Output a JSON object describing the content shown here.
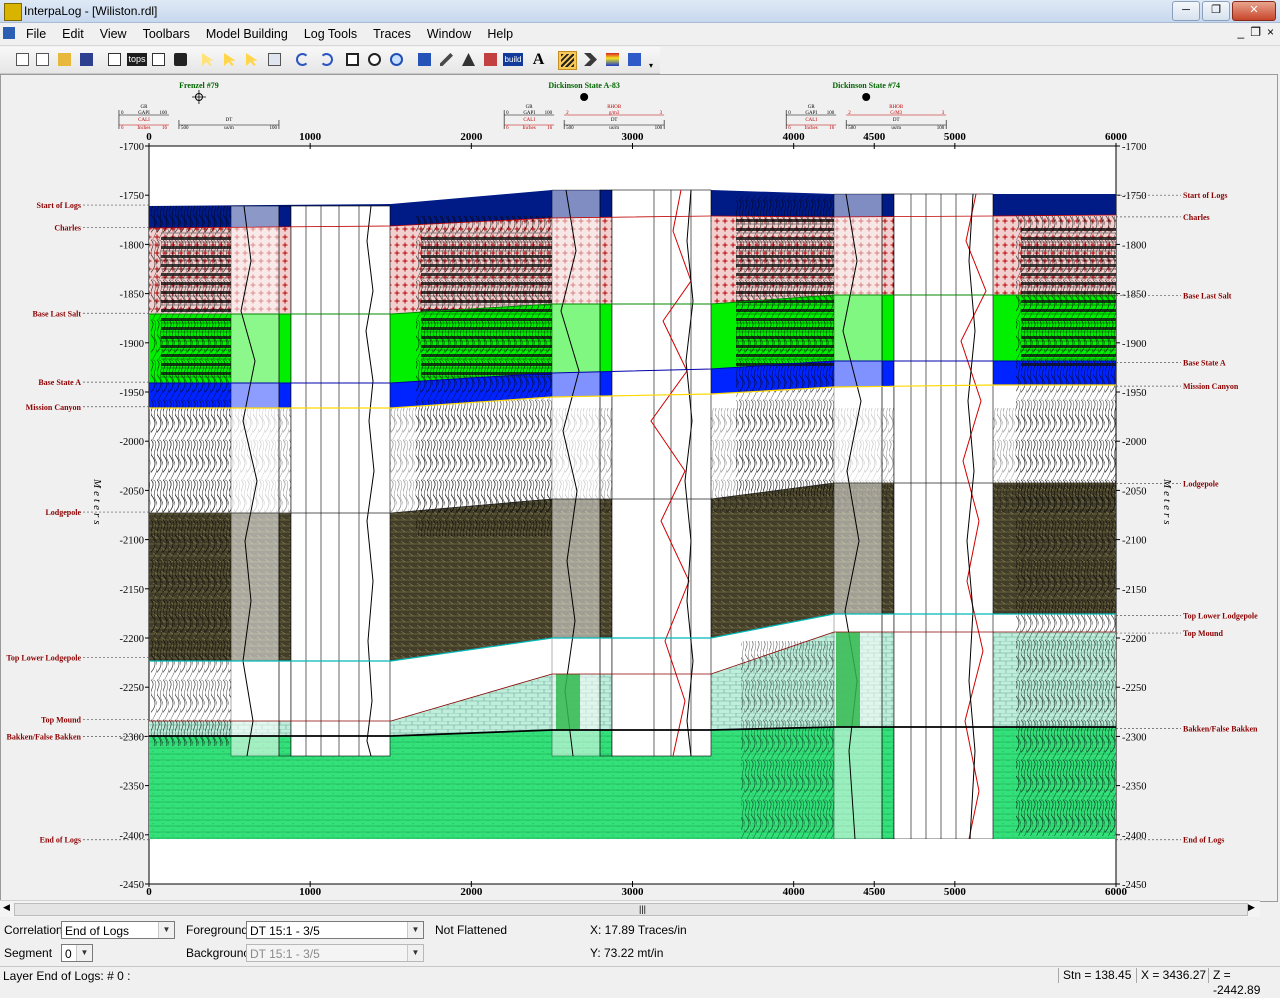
{
  "window": {
    "title": "InterpaLog - [Wiliston.rdl]",
    "buttons": [
      "─",
      "❐",
      "✕"
    ]
  },
  "menu": {
    "items": [
      "File",
      "Edit",
      "View",
      "Toolbars",
      "Model Building",
      "Log Tools",
      "Traces",
      "Window",
      "Help"
    ],
    "mdi_controls": [
      "_",
      "❐",
      "×"
    ]
  },
  "toolbar": {
    "tops_label": "tops",
    "build_label": "build",
    "text_label": "A"
  },
  "wells": [
    {
      "name": "Frenzel #79",
      "symbol": "dry-hole-symbol",
      "offset": 310,
      "track1": {
        "c1": "GR",
        "u1": "GAPI",
        "r1": [
          "0",
          "100"
        ],
        "c2": "CALI",
        "u2": "Inches",
        "r2": [
          "6",
          "16"
        ]
      },
      "track2": {
        "c1": "DT",
        "u1": "us/m",
        "r1": [
          "500",
          "100"
        ]
      }
    },
    {
      "name": "Dickinson State A-83",
      "symbol": "oil-well-symbol",
      "offset": 2700,
      "track1": {
        "c1": "GR",
        "u1": "GAPI",
        "r1": [
          "0",
          "100"
        ],
        "c2": "CALI",
        "u2": "Inches",
        "r2": [
          "6",
          "16"
        ]
      },
      "track2": {
        "c1": "RHOB",
        "u1": "g/m3",
        "r1": [
          "2",
          "3"
        ],
        "c2": "DT",
        "u2": "us/m",
        "r2": [
          "500",
          "100"
        ]
      }
    },
    {
      "name": "Dickinson State #74",
      "symbol": "oil-well-symbol",
      "offset": 4450,
      "track1": {
        "c1": "GR",
        "u1": "GAPI",
        "r1": [
          "0",
          "100"
        ],
        "c2": "CALI",
        "u2": "Inches",
        "r2": [
          "6",
          "16"
        ]
      },
      "track2": {
        "c1": "RHOB",
        "u1": "G/M3",
        "r1": [
          "2",
          "3"
        ],
        "c2": "DT",
        "u2": "us/m",
        "r2": [
          "500",
          "100"
        ]
      }
    }
  ],
  "section": {
    "x_ticks": [
      "0",
      "1000",
      "2000",
      "3000",
      "4000",
      "4500",
      "5000",
      "6000"
    ],
    "x_tick_values": [
      0,
      1000,
      2000,
      3000,
      4000,
      4500,
      5000,
      6000
    ],
    "x_range": [
      0,
      6000
    ],
    "y_ticks": [
      "-1700",
      "-1750",
      "-1800",
      "-1850",
      "-1900",
      "-1950",
      "-2000",
      "-2050",
      "-2100",
      "-2150",
      "-2200",
      "-2250",
      "-2300",
      "-2350",
      "-2400",
      "-2450"
    ],
    "y_tick_values": [
      -1700,
      -1750,
      -1800,
      -1850,
      -1900,
      -1950,
      -2000,
      -2050,
      -2100,
      -2150,
      -2200,
      -2250,
      -2300,
      -2350,
      -2400,
      -2450
    ],
    "y_range": [
      -1700,
      -2450
    ],
    "axis_label": "Meters",
    "left_tops": [
      {
        "name": "Start of Logs",
        "depth": -1760
      },
      {
        "name": "Charles",
        "depth": -1783
      },
      {
        "name": "Base Last Salt",
        "depth": -1870
      },
      {
        "name": "Base State A",
        "depth": -1940
      },
      {
        "name": "Mission Canyon",
        "depth": -1965
      },
      {
        "name": "Lodgepole",
        "depth": -2072
      },
      {
        "name": "Top Lower Lodgepole",
        "depth": -2220
      },
      {
        "name": "Top Mound",
        "depth": -2283
      },
      {
        "name": "Bakken/False Bakken",
        "depth": -2300
      },
      {
        "name": "End of Logs",
        "depth": -2405
      }
    ],
    "right_tops": [
      {
        "name": "Start of Logs",
        "depth": -1750
      },
      {
        "name": "Charles",
        "depth": -1772
      },
      {
        "name": "Base Last Salt",
        "depth": -1852
      },
      {
        "name": "Base State A",
        "depth": -1920
      },
      {
        "name": "Mission Canyon",
        "depth": -1944
      },
      {
        "name": "Lodgepole",
        "depth": -2043
      },
      {
        "name": "Top Lower Lodgepole",
        "depth": -2177
      },
      {
        "name": "Top Mound",
        "depth": -2195
      },
      {
        "name": "Bakken/False Bakken",
        "depth": -2292
      },
      {
        "name": "End of Logs",
        "depth": -2405
      }
    ]
  },
  "controls": {
    "correlation_label": "Correlation",
    "correlation_value": "End of Logs",
    "segment_label": "Segment",
    "segment_value": "0",
    "foreground_label": "Foreground",
    "foreground_value": "DT 15:1 - 3/5",
    "background_label": "Backgrounc",
    "background_value": "DT 15:1 - 3/5",
    "flatten_status": "Not Flattened",
    "x_scale": "X: 17.89 Traces/in",
    "y_scale": "Y: 73.22 mt/in"
  },
  "status": {
    "layer": "Layer End of Logs: # 0 :",
    "stn": "Stn = 138.45",
    "x": "X = 3436.27",
    "z": "Z = -2442.89"
  },
  "scrollbar": {
    "grip": "|||",
    "left": "◀",
    "right": "▶"
  },
  "colors": {
    "salt": "#f2d0d0",
    "salt_dot": "#b30000",
    "green": "#00f000",
    "blue": "#0024ff",
    "navy": "#001a86",
    "shale": "#433e29",
    "mound": "#bfeedd",
    "bakken": "#33e07a",
    "tops_text": "#8b0000",
    "well_name": "#006600"
  }
}
